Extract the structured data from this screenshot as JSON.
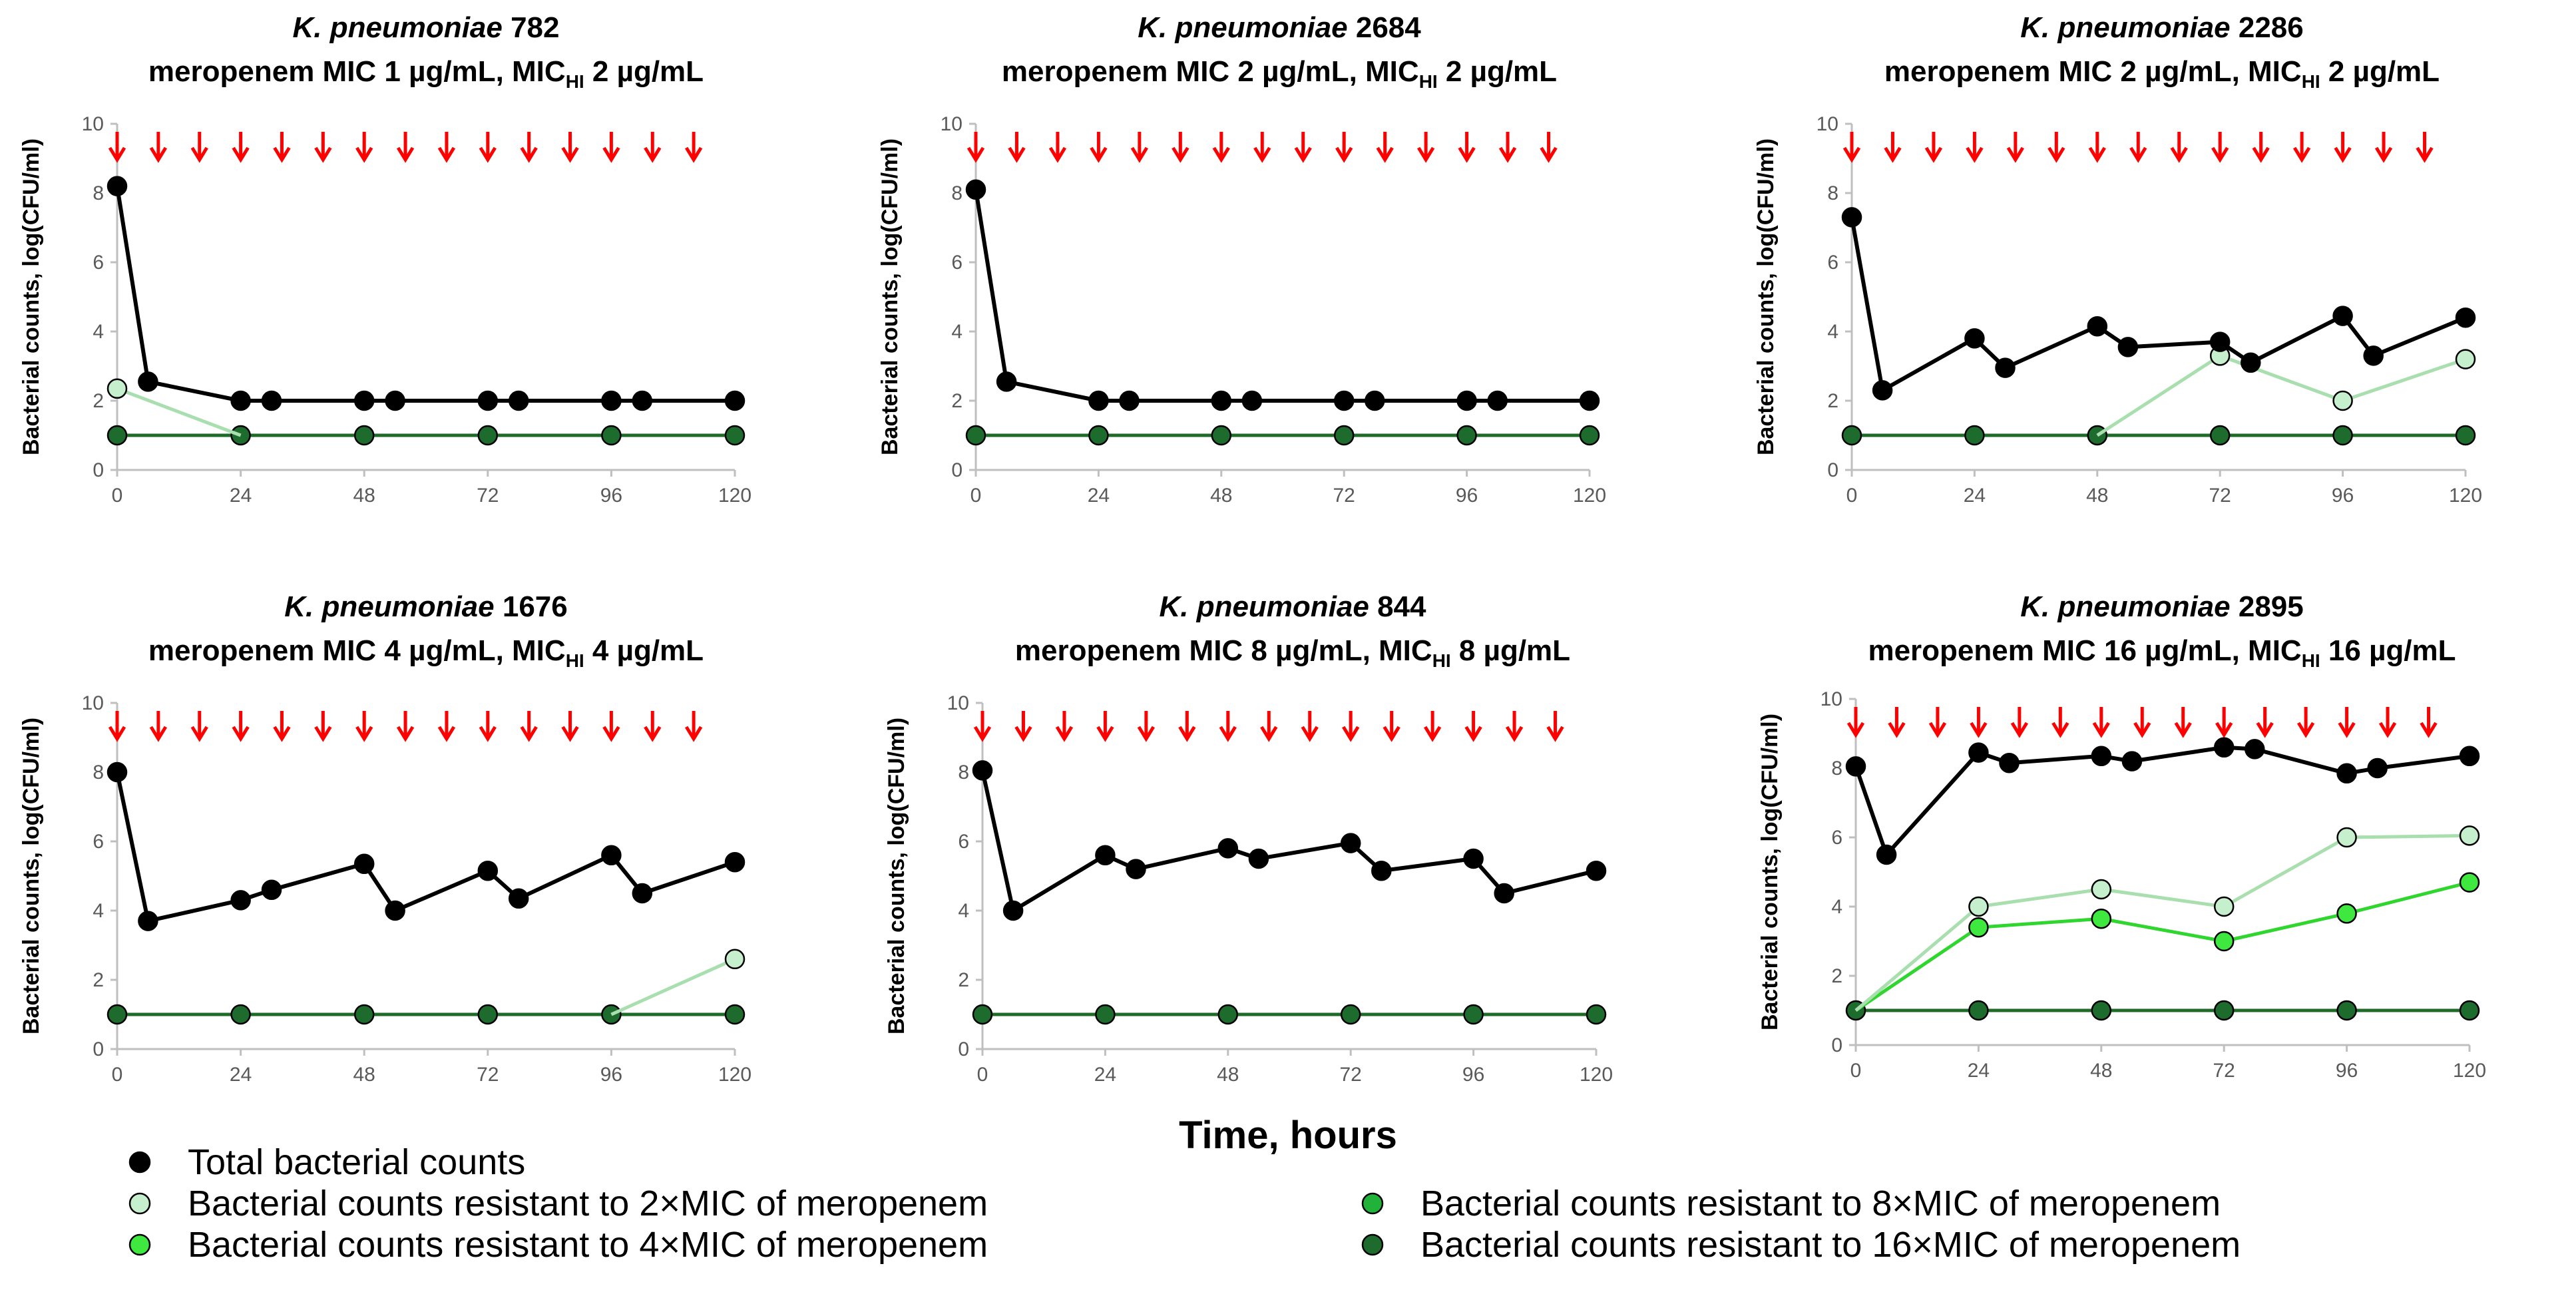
{
  "figure": {
    "x_axis_label": "Time, hours",
    "y_axis_label": "Bacterial counts, log(CFU/ml)"
  },
  "colors": {
    "total": "#000000",
    "res2": "#c6efce",
    "res2_line": "#a9dfae",
    "res4": "#3ee83e",
    "res4_line": "#2ed62e",
    "res8": "#21b23a",
    "res16": "#1e6b2e",
    "res16_line": "#1d6b27",
    "arrow": "#ff0000",
    "axis": "#bfbfbf"
  },
  "legend": [
    {
      "key": "total",
      "label": "Total bacterial counts"
    },
    {
      "key": "res2",
      "label": "Bacterial counts resistant to 2×MIC of meropenem"
    },
    {
      "key": "res4",
      "label": "Bacterial counts resistant to 4×MIC of meropenem"
    },
    {
      "key": "res8",
      "label": "Bacterial counts resistant to 8×MIC of meropenem"
    },
    {
      "key": "res16",
      "label": "Bacterial counts resistant to 16×MIC of meropenem"
    }
  ],
  "chart_data": [
    {
      "type": "line",
      "title_strain_italic": "K. pneumoniae",
      "title_strain_id": " 782",
      "title_line2_main": "meropenem MIC 1 µg/mL, MIC",
      "title_line2_sub": "HI",
      "title_line2_tail": " 2 µg/mL",
      "xlim": [
        0,
        120
      ],
      "ylim": [
        0,
        10
      ],
      "xticks": [
        "0",
        "24",
        "48",
        "72",
        "96",
        "120"
      ],
      "yticks": [
        "0",
        "2",
        "4",
        "6",
        "8",
        "10"
      ],
      "dose_times": [
        0,
        8,
        16,
        24,
        32,
        40,
        48,
        56,
        64,
        72,
        80,
        88,
        96,
        104,
        112
      ],
      "series": [
        {
          "key": "res16",
          "name": "Bacterial counts resistant to 16×MIC of meropenem",
          "x": [
            0,
            24,
            48,
            72,
            96,
            120
          ],
          "y": [
            1,
            1,
            1,
            1,
            1,
            1
          ]
        },
        {
          "key": "res2",
          "name": "Bacterial counts resistant to 2×MIC of meropenem",
          "x": [
            0,
            24
          ],
          "y": [
            2.35,
            1.0
          ],
          "marker_x": [
            0
          ],
          "marker_y": [
            2.35
          ]
        },
        {
          "key": "total",
          "name": "Total bacterial counts",
          "x": [
            0,
            6,
            24,
            30,
            48,
            54,
            72,
            78,
            96,
            102,
            120
          ],
          "y": [
            8.2,
            2.55,
            2.0,
            2.0,
            2.0,
            2.0,
            2.0,
            2.0,
            2.0,
            2.0,
            2.0
          ]
        }
      ]
    },
    {
      "type": "line",
      "title_strain_italic": "K. pneumoniae",
      "title_strain_id": " 2684",
      "title_line2_main": "meropenem MIC 2 µg/mL, MIC",
      "title_line2_sub": "HI",
      "title_line2_tail": " 2 µg/mL",
      "xlim": [
        0,
        120
      ],
      "ylim": [
        0,
        10
      ],
      "xticks": [
        "0",
        "24",
        "48",
        "72",
        "96",
        "120"
      ],
      "yticks": [
        "0",
        "2",
        "4",
        "6",
        "8",
        "10"
      ],
      "dose_times": [
        0,
        8,
        16,
        24,
        32,
        40,
        48,
        56,
        64,
        72,
        80,
        88,
        96,
        104,
        112
      ],
      "series": [
        {
          "key": "res16",
          "name": "Bacterial counts resistant to 16×MIC of meropenem",
          "x": [
            0,
            24,
            48,
            72,
            96,
            120
          ],
          "y": [
            1,
            1,
            1,
            1,
            1,
            1
          ]
        },
        {
          "key": "total",
          "name": "Total bacterial counts",
          "x": [
            0,
            6,
            24,
            30,
            48,
            54,
            72,
            78,
            96,
            102,
            120
          ],
          "y": [
            8.1,
            2.55,
            2.0,
            2.0,
            2.0,
            2.0,
            2.0,
            2.0,
            2.0,
            2.0,
            2.0
          ]
        }
      ]
    },
    {
      "type": "line",
      "title_strain_italic": "K. pneumoniae",
      "title_strain_id": " 2286",
      "title_line2_main": "meropenem MIC 2 µg/mL, MIC",
      "title_line2_sub": "HI",
      "title_line2_tail": " 2 µg/mL",
      "xlim": [
        0,
        120
      ],
      "ylim": [
        0,
        10
      ],
      "xticks": [
        "0",
        "24",
        "48",
        "72",
        "96",
        "120"
      ],
      "yticks": [
        "0",
        "2",
        "4",
        "6",
        "8",
        "10"
      ],
      "dose_times": [
        0,
        8,
        16,
        24,
        32,
        40,
        48,
        56,
        64,
        72,
        80,
        88,
        96,
        104,
        112
      ],
      "series": [
        {
          "key": "res16",
          "name": "Bacterial counts resistant to 16×MIC of meropenem",
          "x": [
            0,
            24,
            48,
            72,
            96,
            120
          ],
          "y": [
            1,
            1,
            1,
            1,
            1,
            1
          ]
        },
        {
          "key": "res2",
          "name": "Bacterial counts resistant to 2×MIC of meropenem",
          "x": [
            48,
            72,
            96,
            120
          ],
          "y": [
            1.0,
            3.3,
            2.0,
            3.2
          ],
          "marker_x": [
            72,
            96,
            120
          ],
          "marker_y": [
            3.3,
            2.0,
            3.2
          ]
        },
        {
          "key": "total",
          "name": "Total bacterial counts",
          "x": [
            0,
            6,
            24,
            30,
            48,
            54,
            72,
            78,
            96,
            102,
            120
          ],
          "y": [
            7.3,
            2.3,
            3.8,
            2.95,
            4.15,
            3.55,
            3.7,
            3.1,
            4.45,
            3.3,
            4.4
          ]
        }
      ]
    },
    {
      "type": "line",
      "title_strain_italic": "K. pneumoniae",
      "title_strain_id": " 1676",
      "title_line2_main": "meropenem MIC 4 µg/mL, MIC",
      "title_line2_sub": "HI",
      "title_line2_tail": " 4 µg/mL",
      "xlim": [
        0,
        120
      ],
      "ylim": [
        0,
        10
      ],
      "xticks": [
        "0",
        "24",
        "48",
        "72",
        "96",
        "120"
      ],
      "yticks": [
        "0",
        "2",
        "4",
        "6",
        "8",
        "10"
      ],
      "dose_times": [
        0,
        8,
        16,
        24,
        32,
        40,
        48,
        56,
        64,
        72,
        80,
        88,
        96,
        104,
        112
      ],
      "series": [
        {
          "key": "res16",
          "name": "Bacterial counts resistant to 16×MIC of meropenem",
          "x": [
            0,
            24,
            48,
            72,
            96,
            120
          ],
          "y": [
            1,
            1,
            1,
            1,
            1,
            1
          ]
        },
        {
          "key": "res2",
          "name": "Bacterial counts resistant to 2×MIC of meropenem",
          "x": [
            96,
            120
          ],
          "y": [
            1.0,
            2.6
          ],
          "marker_x": [
            120
          ],
          "marker_y": [
            2.6
          ]
        },
        {
          "key": "total",
          "name": "Total bacterial counts",
          "x": [
            0,
            6,
            24,
            30,
            48,
            54,
            72,
            78,
            96,
            102,
            120
          ],
          "y": [
            8.0,
            3.7,
            4.3,
            4.6,
            5.35,
            4.0,
            5.15,
            4.35,
            5.6,
            4.5,
            5.4
          ]
        }
      ]
    },
    {
      "type": "line",
      "title_strain_italic": "K. pneumoniae",
      "title_strain_id": " 844",
      "title_line2_main": "meropenem MIC 8 µg/mL, MIC",
      "title_line2_sub": "HI",
      "title_line2_tail": " 8 µg/mL",
      "xlim": [
        0,
        120
      ],
      "ylim": [
        0,
        10
      ],
      "xticks": [
        "0",
        "24",
        "48",
        "72",
        "96",
        "120"
      ],
      "yticks": [
        "0",
        "2",
        "4",
        "6",
        "8",
        "10"
      ],
      "dose_times": [
        0,
        8,
        16,
        24,
        32,
        40,
        48,
        56,
        64,
        72,
        80,
        88,
        96,
        104,
        112
      ],
      "series": [
        {
          "key": "res16",
          "name": "Bacterial counts resistant to 16×MIC of meropenem",
          "x": [
            0,
            24,
            48,
            72,
            96,
            120
          ],
          "y": [
            1,
            1,
            1,
            1,
            1,
            1
          ]
        },
        {
          "key": "total",
          "name": "Total bacterial counts",
          "x": [
            0,
            6,
            24,
            30,
            48,
            54,
            72,
            78,
            96,
            102,
            120
          ],
          "y": [
            8.05,
            4.0,
            5.6,
            5.2,
            5.8,
            5.5,
            5.95,
            5.15,
            5.5,
            4.5,
            5.15
          ]
        }
      ]
    },
    {
      "type": "line",
      "title_strain_italic": "K. pneumoniae",
      "title_strain_id": " 2895",
      "title_line2_main": "meropenem MIC 16 µg/mL, MIC",
      "title_line2_sub": "HI",
      "title_line2_tail": " 16 µg/mL",
      "xlim": [
        0,
        120
      ],
      "ylim": [
        0,
        10
      ],
      "xticks": [
        "0",
        "24",
        "48",
        "72",
        "96",
        "120"
      ],
      "yticks": [
        "0",
        "2",
        "4",
        "6",
        "8",
        "10"
      ],
      "dose_times": [
        0,
        8,
        16,
        24,
        32,
        40,
        48,
        56,
        64,
        72,
        80,
        88,
        96,
        104,
        112
      ],
      "series": [
        {
          "key": "res16",
          "name": "Bacterial counts resistant to 16×MIC of meropenem",
          "x": [
            0,
            24,
            48,
            72,
            96,
            120
          ],
          "y": [
            1,
            1,
            1,
            1,
            1,
            1
          ]
        },
        {
          "key": "res2",
          "name": "Bacterial counts resistant to 2×MIC of meropenem",
          "x": [
            0,
            24,
            48,
            72,
            96,
            120
          ],
          "y": [
            1.0,
            4.0,
            4.5,
            4.0,
            6.0,
            6.05
          ],
          "marker_x": [
            24,
            48,
            72,
            96,
            120
          ],
          "marker_y": [
            4.0,
            4.5,
            4.0,
            6.0,
            6.05
          ]
        },
        {
          "key": "res4",
          "name": "Bacterial counts resistant to 4×MIC of meropenem",
          "x": [
            0,
            24,
            48,
            72,
            96,
            120
          ],
          "y": [
            1.0,
            3.4,
            3.65,
            3.0,
            3.8,
            4.7
          ],
          "marker_x": [
            24,
            48,
            72,
            96,
            120
          ],
          "marker_y": [
            3.4,
            3.65,
            3.0,
            3.8,
            4.7
          ]
        },
        {
          "key": "total",
          "name": "Total bacterial counts",
          "x": [
            0,
            6,
            24,
            30,
            48,
            54,
            72,
            78,
            96,
            102,
            120
          ],
          "y": [
            8.05,
            5.5,
            8.45,
            8.15,
            8.35,
            8.2,
            8.6,
            8.55,
            7.85,
            8.0,
            8.35
          ]
        }
      ]
    }
  ]
}
